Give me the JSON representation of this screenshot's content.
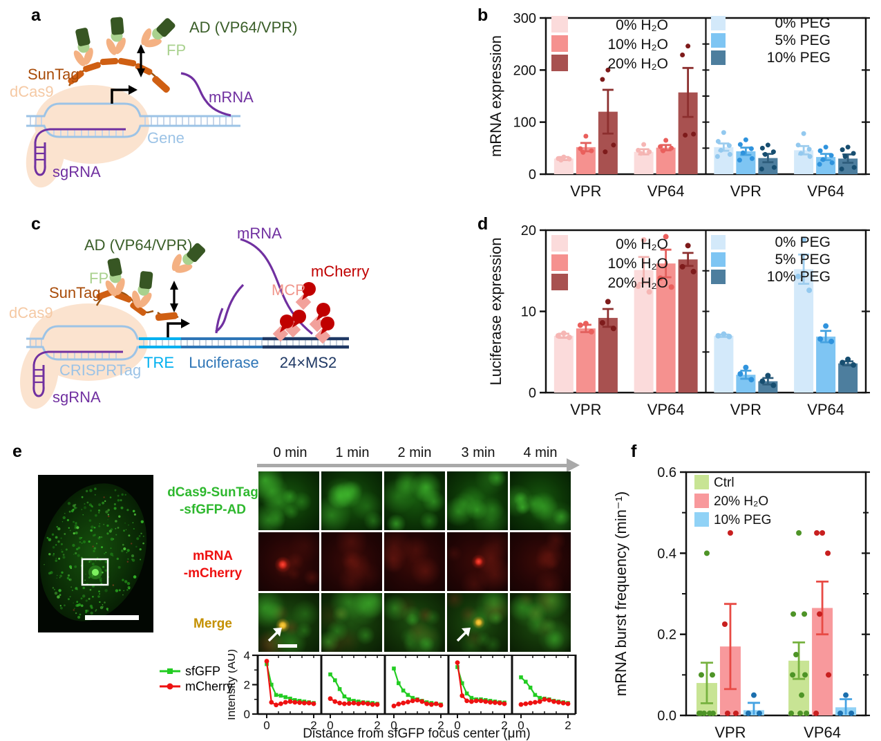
{
  "panels": {
    "a": {
      "letter": "a",
      "labels": {
        "suntag": "SunTag",
        "dcas9": "dCas9",
        "ad": "AD (VP64/VPR)",
        "fp": "FP",
        "mrna": "mRNA",
        "gene": "Gene",
        "sgrna": "sgRNA"
      }
    },
    "b": {
      "letter": "b"
    },
    "c": {
      "letter": "c",
      "labels": {
        "mrna": "mRNA",
        "ad": "AD (VP64/VPR)",
        "fp": "FP",
        "suntag": "SunTag",
        "dcas9": "dCas9",
        "crisprtag": "CRISPRTag",
        "sgrna": "sgRNA",
        "tre": "TRE",
        "luciferase": "Luciferase",
        "ms2": "24×MS2",
        "mcp": "MCP",
        "mcherry": "mCherry"
      }
    },
    "d": {
      "letter": "d"
    },
    "e": {
      "letter": "e",
      "timepoints": [
        "0 min",
        "1 min",
        "2 min",
        "3 min",
        "4 min"
      ],
      "row_labels": [
        {
          "lines": [
            "dCas9-SunTag",
            "-sfGFP-AD"
          ],
          "color": "#2eb82e"
        },
        {
          "lines": [
            "mRNA",
            "-mCherry"
          ],
          "color": "#ee1111"
        },
        {
          "lines": [
            "Merge"
          ],
          "color": "#c49000"
        }
      ],
      "legend": [
        {
          "name": "sfGFP",
          "color": "#22cc22",
          "marker": "square"
        },
        {
          "name": "mCherry",
          "color": "#ee1111",
          "marker": "circle"
        }
      ],
      "spot_timepoints": [
        0,
        3
      ]
    },
    "f": {
      "letter": "f"
    }
  },
  "chart_data": [
    {
      "id": "b",
      "type": "bar",
      "ylabel": "mRNA expression",
      "ylim": [
        0,
        300
      ],
      "yticks": [
        0,
        100,
        200,
        300
      ],
      "ytick_labels": [
        "0",
        "100",
        "200",
        "300"
      ],
      "minor_step": 50,
      "categories": [
        "VPR",
        "VP64"
      ],
      "subpanels": [
        {
          "series": [
            {
              "name": "0% H₂O",
              "color": "#fbdbdb",
              "error_color": "#f2b3b1",
              "dot_color": "#f6b6b4",
              "values": [
                30,
                43
              ],
              "errors": [
                3,
                5
              ],
              "dots": [
                [
                  33,
                  30,
                  29,
                  27
                ],
                [
                  57,
                  46,
                  43,
                  40
                ]
              ]
            },
            {
              "name": "10% H₂O",
              "color": "#f5918f",
              "error_color": "#e2615e",
              "dot_color": "#ea5f5c",
              "values": [
                52,
                51
              ],
              "errors": [
                8,
                5
              ],
              "dots": [
                [
                  73,
                  49,
                  45,
                  42
                ],
                [
                  65,
                  53,
                  50,
                  45
                ]
              ]
            },
            {
              "name": "20% H₂O",
              "color": "#a85150",
              "error_color": "#8c2f2e",
              "dot_color": "#7e1b1b",
              "values": [
                120,
                157
              ],
              "errors": [
                42,
                47
              ],
              "dots": [
                [
                  200,
                  182,
                  56,
                  43
                ],
                [
                  246,
                  229,
                  77,
                  75
                ]
              ]
            }
          ]
        },
        {
          "series": [
            {
              "name": "0% PEG",
              "color": "#d3e9fa",
              "error_color": "#9ecdee",
              "dot_color": "#93c9ef",
              "values": [
                52,
                46
              ],
              "errors": [
                7,
                8
              ],
              "dots": [
                [
                  80,
                  63,
                  55,
                  46,
                  38,
                  34
                ],
                [
                  78,
                  56,
                  48,
                  40,
                  34
                ]
              ]
            },
            {
              "name": "5% PEG",
              "color": "#7ec5f3",
              "error_color": "#47a3e0",
              "dot_color": "#2f93dd",
              "values": [
                44,
                33
              ],
              "errors": [
                7,
                6
              ],
              "dots": [
                [
                  66,
                  57,
                  49,
                  41,
                  30,
                  27
                ],
                [
                  52,
                  45,
                  36,
                  28,
                  22,
                  19
                ]
              ]
            },
            {
              "name": "10% PEG",
              "color": "#4d7e9e",
              "error_color": "#2f5e7d",
              "dot_color": "#174e70",
              "values": [
                31,
                30
              ],
              "errors": [
                8,
                8
              ],
              "dots": [
                [
                  56,
                  50,
                  43,
                  38,
                  13,
                  10
                ],
                [
                  52,
                  47,
                  40,
                  34,
                  13,
                  10
                ]
              ]
            }
          ]
        }
      ]
    },
    {
      "id": "d",
      "type": "bar",
      "ylabel": "Luciferase expression",
      "ylim": [
        0,
        20
      ],
      "yticks": [
        0,
        10,
        20
      ],
      "ytick_labels": [
        "0",
        "10",
        "20"
      ],
      "minor_step": 5,
      "categories": [
        "VPR",
        "VP64"
      ],
      "subpanels": [
        {
          "series": [
            {
              "name": "0% H₂O",
              "color": "#fbdbdb",
              "error_color": "#f2b3b1",
              "dot_color": "#f6b6b4",
              "values": [
                7.0,
                15.1
              ],
              "errors": [
                0.25,
                1.6
              ],
              "dots": [
                [
                  7.3,
                  7.0,
                  6.8
                ],
                [
                  18.8,
                  13.1,
                  12.4
                ]
              ]
            },
            {
              "name": "10% H₂O",
              "color": "#f5918f",
              "error_color": "#e2615e",
              "dot_color": "#ea5f5c",
              "values": [
                7.9,
                15.9
              ],
              "errors": [
                0.45,
                1.7
              ],
              "dots": [
                [
                  8.5,
                  8.3,
                  7.5
                ],
                [
                  19.2,
                  14.1,
                  13.0
                ]
              ]
            },
            {
              "name": "20% H₂O",
              "color": "#a85150",
              "error_color": "#8c2f2e",
              "dot_color": "#7e1b1b",
              "values": [
                9.2,
                16.4
              ],
              "errors": [
                1.1,
                0.8
              ],
              "dots": [
                [
                  11.2,
                  8.6,
                  7.9
                ],
                [
                  18.1,
                  15.5,
                  14.9
                ]
              ]
            }
          ]
        },
        {
          "series": [
            {
              "name": "0% PEG",
              "color": "#d3e9fa",
              "error_color": "#9ecdee",
              "dot_color": "#93c9ef",
              "values": [
                7.0,
                15.2
              ],
              "errors": [
                0.15,
                1.8
              ],
              "dots": [
                [
                  7.2,
                  7.0,
                  6.9
                ],
                [
                  18.8,
                  14.3,
                  12.6
                ]
              ]
            },
            {
              "name": "5% PEG",
              "color": "#7ec5f3",
              "error_color": "#47a3e0",
              "dot_color": "#2f93dd",
              "values": [
                2.2,
                6.9
              ],
              "errors": [
                0.5,
                0.7
              ],
              "dots": [
                [
                  3.1,
                  2.3,
                  1.6
                ],
                [
                  8.2,
                  6.6,
                  6.3
                ]
              ]
            },
            {
              "name": "10% PEG",
              "color": "#4d7e9e",
              "error_color": "#2f5e7d",
              "dot_color": "#174e70",
              "values": [
                1.4,
                3.6
              ],
              "errors": [
                0.4,
                0.25
              ],
              "dots": [
                [
                  2.1,
                  1.4,
                  0.9
                ],
                [
                  4.1,
                  3.7,
                  3.4
                ]
              ]
            }
          ]
        }
      ]
    },
    {
      "id": "f",
      "type": "bar",
      "ylabel": "mRNA burst frequency (min⁻¹)",
      "ylim": [
        0,
        0.6
      ],
      "yticks": [
        0,
        0.2,
        0.4,
        0.6
      ],
      "ytick_labels": [
        "0.0",
        "0.2",
        "0.4",
        "0.6"
      ],
      "minor_step": 0.1,
      "categories": [
        "VPR",
        "VP64"
      ],
      "subpanels": [
        {
          "series": [
            {
              "name": "Ctrl",
              "color": "#c8e494",
              "error_color": "#76b13f",
              "dot_color": "#4e9427",
              "values": [
                0.08,
                0.135
              ],
              "errors": [
                0.05,
                0.045
              ],
              "dots": [
                [
                  0.4,
                  0.1,
                  0.1,
                  0,
                  0,
                  0,
                  0,
                  0
                ],
                [
                  0.45,
                  0.25,
                  0.25,
                  0.15,
                  0.1,
                  0.1,
                  0.05,
                  0,
                  0,
                  0
                ]
              ]
            },
            {
              "name": "20% H₂O",
              "color": "#f8999c",
              "error_color": "#e84b45",
              "dot_color": "#c81f1f",
              "values": [
                0.17,
                0.265
              ],
              "errors": [
                0.105,
                0.065
              ],
              "dots": [
                [
                  0.45,
                  0.225,
                  0,
                  0
                ],
                [
                  0.45,
                  0.45,
                  0.4,
                  0.25,
                  0.1,
                  0
                ]
              ]
            },
            {
              "name": "10% PEG",
              "color": "#90d2f6",
              "error_color": "#45a2e2",
              "dot_color": "#1b6fae",
              "values": [
                0.013,
                0.02
              ],
              "errors": [
                0.018,
                0.02
              ],
              "dots": [
                [
                  0.05,
                  0,
                  0
                ],
                [
                  0.05,
                  0,
                  0
                ]
              ]
            }
          ]
        }
      ]
    },
    {
      "id": "e_intensity",
      "type": "line",
      "ylabel": "Intensity (AU)",
      "xlabel": "Distance from sfGFP focus center (μm)",
      "ylim": [
        0,
        4
      ],
      "yticks": [
        0,
        2,
        4
      ],
      "ytick_labels": [
        "0",
        "2",
        "4"
      ],
      "xticks": [
        0,
        2
      ],
      "xtick_labels": [
        "0",
        "2"
      ],
      "x_minor": [
        0.5,
        1.0,
        1.5
      ],
      "x": [
        0,
        0.2,
        0.4,
        0.6,
        0.8,
        1.0,
        1.2,
        1.4,
        1.6,
        1.8,
        2.0
      ],
      "series_colors": {
        "sfGFP": "#22cc22",
        "mCherry": "#ee1111"
      },
      "plots": [
        {
          "title": "0 min",
          "sfGFP": [
            3.4,
            2.0,
            1.3,
            1.25,
            1.15,
            1.05,
            0.95,
            0.9,
            0.85,
            0.8,
            0.75
          ],
          "mCherry": [
            3.6,
            0.8,
            0.62,
            0.7,
            0.8,
            0.85,
            0.8,
            0.78,
            0.75,
            0.75,
            0.7
          ]
        },
        {
          "title": "1 min",
          "sfGFP": [
            2.7,
            2.3,
            1.7,
            1.2,
            1.0,
            0.9,
            0.85,
            0.8,
            0.78,
            0.75,
            0.7
          ],
          "mCherry": [
            1.05,
            0.85,
            0.75,
            0.7,
            0.72,
            0.75,
            0.7,
            0.75,
            0.7,
            0.65,
            0.65
          ]
        },
        {
          "title": "2 min",
          "sfGFP": [
            3.1,
            2.1,
            1.6,
            1.3,
            1.1,
            1.0,
            0.9,
            0.8,
            0.75,
            0.7,
            0.65
          ],
          "mCherry": [
            0.55,
            0.68,
            0.75,
            0.82,
            0.9,
            0.95,
            0.85,
            0.7,
            0.65,
            0.7,
            0.6
          ]
        },
        {
          "title": "3 min",
          "sfGFP": [
            3.2,
            2.1,
            1.4,
            1.1,
            1.0,
            1.0,
            0.95,
            0.9,
            0.85,
            0.8,
            0.78
          ],
          "mCherry": [
            3.5,
            1.25,
            0.9,
            0.85,
            0.9,
            0.9,
            0.85,
            0.8,
            0.78,
            0.75,
            0.7
          ]
        },
        {
          "title": "4 min",
          "sfGFP": [
            2.5,
            2.2,
            1.8,
            1.3,
            1.1,
            1.05,
            1.0,
            0.9,
            0.85,
            0.8,
            0.75
          ],
          "mCherry": [
            0.65,
            0.7,
            0.75,
            0.8,
            0.85,
            1.0,
            0.95,
            0.85,
            0.8,
            0.75,
            0.7
          ]
        }
      ]
    }
  ]
}
